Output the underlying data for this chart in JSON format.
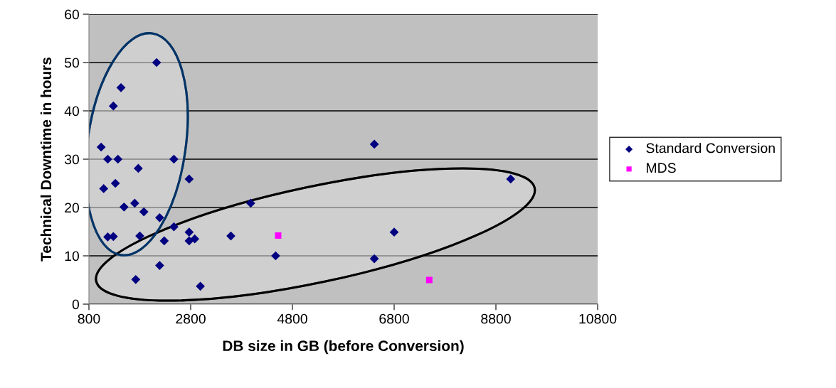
{
  "chart_data": {
    "type": "scatter",
    "xlabel": "DB size in GB (before Conversion)",
    "ylabel": "Technical Downtime in hours",
    "xlim": [
      800,
      10800
    ],
    "xticks": [
      800,
      2800,
      4800,
      6800,
      8800,
      10800
    ],
    "ylim": [
      0,
      60
    ],
    "yticks": [
      0,
      10,
      20,
      30,
      40,
      50,
      60
    ],
    "grid": "y",
    "legend": "right",
    "series": [
      {
        "name": "Standard Conversion",
        "color": "#000080",
        "marker": "diamond",
        "x": [
          2130,
          1430,
          1280,
          1040,
          1170,
          1370,
          2470,
          1770,
          2770,
          1320,
          1090,
          1700,
          1490,
          1880,
          3980,
          2190,
          2470,
          2770,
          1170,
          1280,
          1800,
          3590,
          2280,
          2770,
          2880,
          4470,
          2190,
          1720,
          2990,
          6410,
          9090,
          6800,
          6410
        ],
        "values": [
          50,
          44.8,
          41,
          32.5,
          30,
          30,
          30,
          28.1,
          25.9,
          25,
          23.9,
          20.9,
          20.1,
          19.1,
          20.9,
          17.9,
          16,
          14.9,
          13.9,
          14,
          14.1,
          14.1,
          13.1,
          13.1,
          13.5,
          10,
          8,
          5.1,
          3.7,
          33.1,
          25.9,
          14.9,
          9.4
        ]
      },
      {
        "name": "MDS",
        "color": "#ff00ff",
        "marker": "square",
        "x": [
          4520,
          7490
        ],
        "values": [
          14.2,
          5
        ]
      }
    ]
  }
}
